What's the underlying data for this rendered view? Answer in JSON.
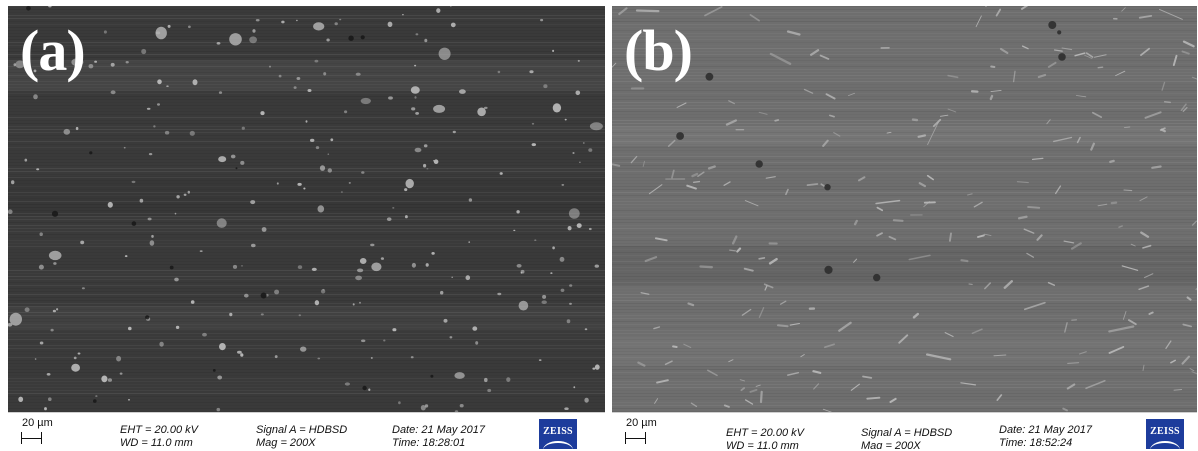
{
  "panels": [
    {
      "letter": "(a)",
      "scale_label": "20 µm",
      "eht": "EHT = 20.00 kV",
      "wd": "WD = 11.0 mm",
      "signal": "Signal A = HDBSD",
      "mag": "Mag = 200X",
      "date": "Date: 21 May 2017",
      "time": "Time: 18:28:01",
      "logo": "ZEISS"
    },
    {
      "letter": "(b)",
      "scale_label": "20 µm",
      "eht": "EHT = 20.00 kV",
      "wd": "WD = 11.0 mm",
      "signal": "Signal A = HDBSD",
      "mag": "Mag = 200X",
      "date": "Date: 21 May 2017",
      "time": "Time: 18:52:24",
      "logo": "ZEISS"
    }
  ],
  "colors": {
    "panel_a_background": "#3a3a3a",
    "panel_b_background": "#6e6e6e",
    "particle": "#bdbdbd",
    "logo_blue": "#1d3c9c"
  }
}
